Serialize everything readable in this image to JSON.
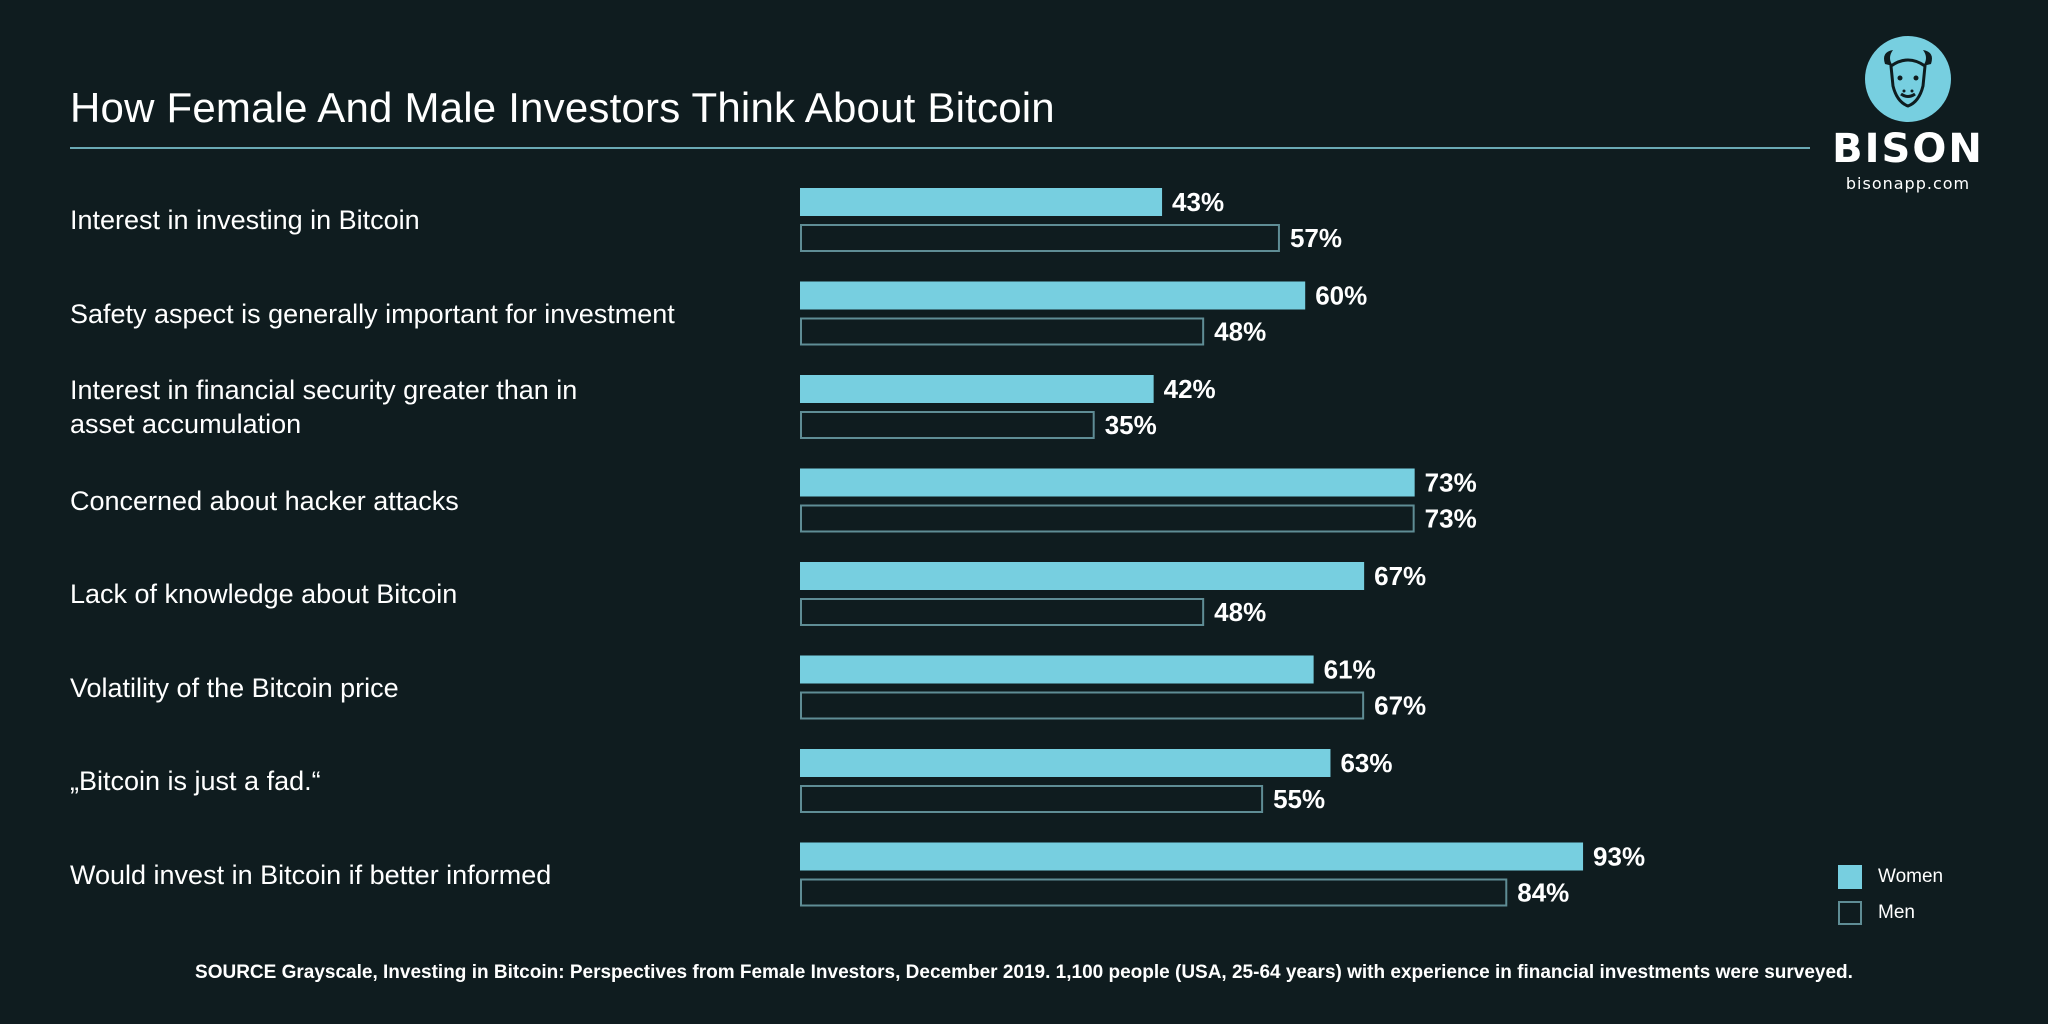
{
  "brand": {
    "name": "BISON",
    "url": "bisonapp.com",
    "icon": "bison-head-icon",
    "accent": "#77cfe0",
    "background": "#0f1c1f",
    "outline": "#5f8d95"
  },
  "chart_data": {
    "type": "bar",
    "orientation": "horizontal",
    "title": "How Female And Male Investors Think About Bitcoin",
    "categories": [
      "Interest in investing in Bitcoin",
      "Safety aspect is generally important for investment",
      "Interest in financial security greater than in asset accumulation",
      "Concerned about hacker attacks",
      "Lack of knowledge about Bitcoin",
      "Volatility of the Bitcoin price",
      "„Bitcoin is just a fad.“",
      "Would invest in Bitcoin if better informed"
    ],
    "category_lines": [
      [
        "Interest in investing in Bitcoin"
      ],
      [
        "Safety aspect is generally important for investment"
      ],
      [
        "Interest in financial security greater than in",
        "asset accumulation"
      ],
      [
        "Concerned about hacker attacks"
      ],
      [
        "Lack of knowledge about Bitcoin"
      ],
      [
        "Volatility of the Bitcoin price"
      ],
      [
        "„Bitcoin is just a fad.“"
      ],
      [
        "Would invest in Bitcoin if better informed"
      ]
    ],
    "series": [
      {
        "name": "Women",
        "values": [
          43,
          60,
          42,
          73,
          67,
          61,
          63,
          93
        ],
        "style": "filled",
        "color": "#77cfe0"
      },
      {
        "name": "Men",
        "values": [
          57,
          48,
          35,
          73,
          48,
          67,
          55,
          84
        ],
        "style": "outline",
        "color": "#5f8d95"
      }
    ],
    "value_suffix": "%",
    "xlim": [
      0,
      100
    ],
    "legend": "bottom-right",
    "grid": false
  },
  "legend": {
    "women": "Women",
    "men": "Men"
  },
  "source": "SOURCE Grayscale, Investing in Bitcoin: Perspectives from Female Investors, December 2019. 1,100 people (USA, 25-64 years) with experience in financial investments were surveyed."
}
